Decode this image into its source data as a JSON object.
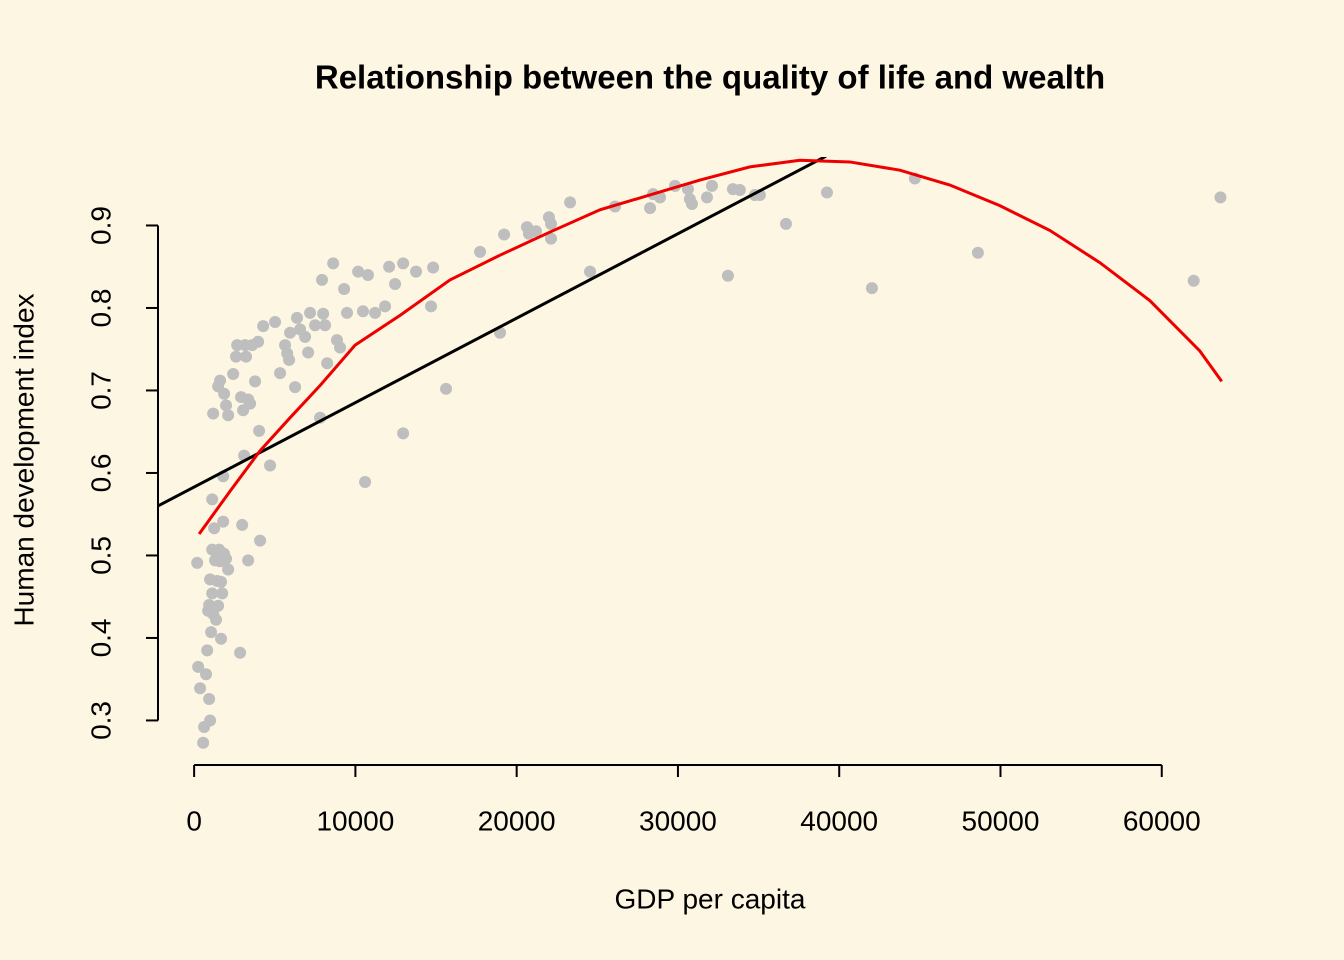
{
  "chart_data": {
    "type": "scatter",
    "title": "Relationship between the quality of life and wealth",
    "xlabel": "GDP per capita",
    "ylabel": "Human development index",
    "xlim": [
      -2240,
      66340
    ],
    "ylim": [
      0.246,
      0.983
    ],
    "xticks": [
      0,
      10000,
      20000,
      30000,
      40000,
      50000,
      60000
    ],
    "yticks": [
      0.3,
      0.4,
      0.5,
      0.6,
      0.7,
      0.8,
      0.9
    ],
    "series": [
      {
        "color": "#bebebe",
        "x": [
          190,
          250,
          370,
          560,
          620,
          740,
          810,
          870,
          930,
          930,
          990,
          990,
          1050,
          1120,
          1120,
          1180,
          1120,
          1180,
          1240,
          1300,
          1360,
          1430,
          1490,
          1550,
          1610,
          1670,
          1670,
          1740,
          1800,
          1800,
          1860,
          1980,
          2110,
          1490,
          1610,
          1860,
          1980,
          2110,
          2420,
          2600,
          2670,
          2850,
          2910,
          2980,
          3040,
          3100,
          3160,
          3220,
          3350,
          3350,
          3470,
          3600,
          3780,
          3970,
          4030,
          4090,
          4280,
          4710,
          5020,
          5330,
          5640,
          5770,
          5890,
          5950,
          6260,
          6380,
          6570,
          6880,
          7070,
          7190,
          7500,
          7810,
          7930,
          8000,
          8120,
          8250,
          8620,
          8860,
          9050,
          9300,
          9480,
          10170,
          10470,
          10600,
          10780,
          11220,
          11840,
          12090,
          12460,
          12960,
          12960,
          13760,
          14690,
          14820,
          15620,
          17730,
          18970,
          19220,
          20640,
          20760,
          21200,
          22000,
          22130,
          22130,
          23310,
          24550,
          26100,
          28270,
          28460,
          28890,
          29820,
          30620,
          30740,
          30870,
          31800,
          32110,
          33100,
          33410,
          33840,
          34770,
          35080,
          36700,
          39240,
          42030,
          44690,
          48600,
          61980,
          63640
        ],
        "y": [
          0.491,
          0.365,
          0.339,
          0.273,
          0.292,
          0.356,
          0.385,
          0.433,
          0.44,
          0.326,
          0.471,
          0.3,
          0.407,
          0.507,
          0.454,
          0.429,
          0.568,
          0.672,
          0.533,
          0.494,
          0.422,
          0.469,
          0.439,
          0.507,
          0.493,
          0.468,
          0.399,
          0.454,
          0.541,
          0.596,
          0.502,
          0.496,
          0.483,
          0.705,
          0.712,
          0.696,
          0.682,
          0.67,
          0.72,
          0.741,
          0.755,
          0.382,
          0.692,
          0.537,
          0.676,
          0.621,
          0.755,
          0.741,
          0.689,
          0.494,
          0.684,
          0.755,
          0.711,
          0.759,
          0.651,
          0.518,
          0.778,
          0.609,
          0.783,
          0.721,
          0.755,
          0.745,
          0.737,
          0.77,
          0.704,
          0.788,
          0.774,
          0.765,
          0.746,
          0.794,
          0.779,
          0.667,
          0.834,
          0.793,
          0.779,
          0.733,
          0.854,
          0.761,
          0.752,
          0.823,
          0.794,
          0.844,
          0.796,
          0.589,
          0.84,
          0.794,
          0.802,
          0.85,
          0.829,
          0.854,
          0.648,
          0.844,
          0.802,
          0.849,
          0.702,
          0.868,
          0.77,
          0.889,
          0.898,
          0.89,
          0.893,
          0.91,
          0.884,
          0.902,
          0.928,
          0.844,
          0.923,
          0.921,
          0.938,
          0.934,
          0.948,
          0.944,
          0.932,
          0.926,
          0.934,
          0.948,
          0.839,
          0.944,
          0.943,
          0.937,
          0.937,
          0.902,
          0.94,
          0.824,
          0.957,
          0.867,
          0.833,
          0.934
        ]
      }
    ],
    "lines": [
      {
        "color": "#000000",
        "x": [
          -2240,
          39180
        ],
        "y": [
          0.56,
          0.984
        ]
      },
      {
        "color": "#ee0000",
        "x": [
          310,
          2231,
          4091,
          5951,
          7810,
          9980,
          12769,
          15868,
          18968,
          22067,
          25166,
          28265,
          31364,
          34463,
          37562,
          40661,
          43761,
          46860,
          49959,
          53058,
          56157,
          59256,
          62355,
          63719
        ],
        "y": [
          0.526,
          0.578,
          0.627,
          0.667,
          0.706,
          0.755,
          0.791,
          0.834,
          0.864,
          0.892,
          0.919,
          0.937,
          0.955,
          0.971,
          0.979,
          0.977,
          0.967,
          0.949,
          0.924,
          0.894,
          0.855,
          0.809,
          0.748,
          0.711
        ]
      }
    ]
  }
}
